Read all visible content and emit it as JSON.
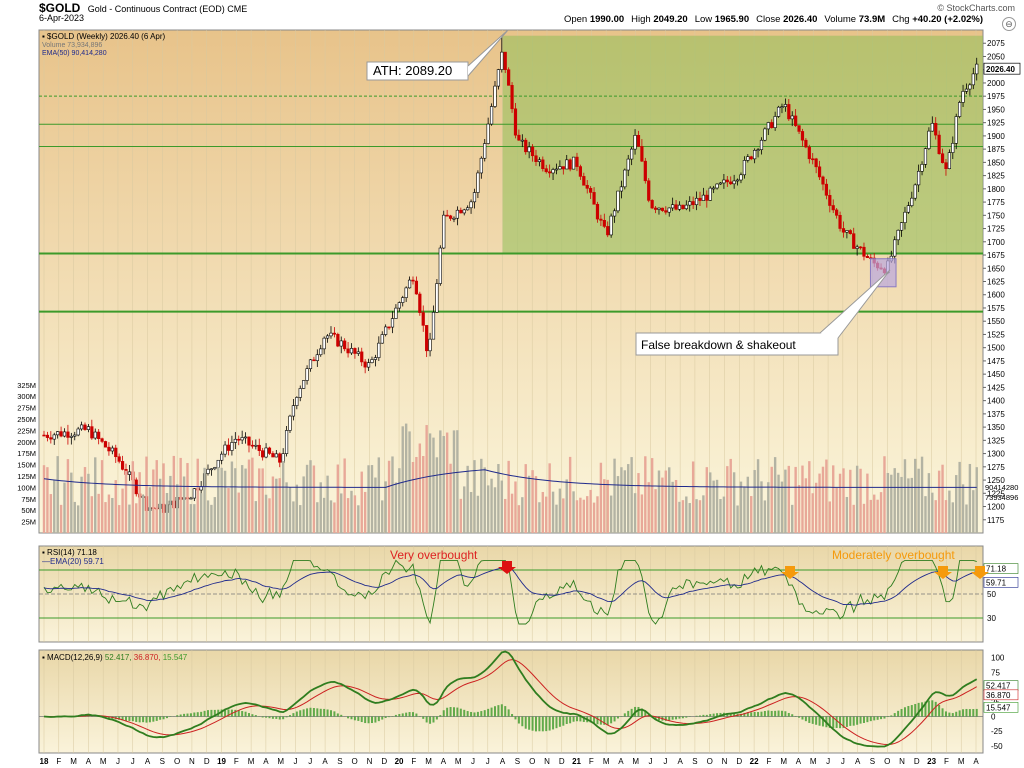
{
  "header": {
    "symbol": "$GOLD",
    "description": "Gold - Continuous Contract (EOD)",
    "exchange": "CME",
    "date": "6-Apr-2023",
    "copyright": "© StockCharts.com",
    "ohlc": [
      {
        "label": "Open",
        "value": "1990.00"
      },
      {
        "label": "High",
        "value": "2049.20"
      },
      {
        "label": "Low",
        "value": "1965.90"
      },
      {
        "label": "Close",
        "value": "2026.40"
      },
      {
        "label": "Volume",
        "value": "73.9M"
      },
      {
        "label": "Chg",
        "value": "+40.20 (+2.02%)"
      }
    ]
  },
  "legend": {
    "price": "$GOLD (Weekly) 2026.40 (6 Apr)",
    "volume": "Volume 73,934,896",
    "ema": "EMA(50) 90,414,280"
  },
  "annotations": {
    "ath": "ATH: 2089.20",
    "false_breakdown": "False breakdown & shakeout",
    "very_overbought": "Very overbought",
    "moderately_overbought": "Moderately overbought"
  },
  "colors": {
    "up": "#000000",
    "down": "#cc0000",
    "volume_up": "#b3b3a3",
    "volume_down": "#e8a898",
    "ema_volume": "#1f2a8c",
    "support_line": "#3c9a2a",
    "range_fill": "#8fc05a",
    "rsi_line": "#2f7d1f",
    "rsi_ema": "#1f2a8c",
    "macd_line": "#2f7d1f",
    "macd_signal": "#cc2222",
    "macd_hist": "#3c9a2a",
    "arrow_red": "#dd1111",
    "arrow_orange": "#f59a0c"
  },
  "chart_data": [
    {
      "type": "candlestick",
      "title": "$GOLD (Weekly) 2026.40 (6 Apr)",
      "y_range": [
        1150,
        2100
      ],
      "y_ticks": [
        1175,
        1200,
        1225,
        1250,
        1275,
        1300,
        1325,
        1350,
        1375,
        1400,
        1425,
        1450,
        1475,
        1500,
        1525,
        1550,
        1575,
        1600,
        1625,
        1650,
        1675,
        1700,
        1725,
        1750,
        1775,
        1800,
        1825,
        1850,
        1875,
        1900,
        1925,
        1950,
        1975,
        2000,
        2025,
        2050,
        2075
      ],
      "last_value": "2026.40",
      "horizontal_levels": [
        {
          "value": 1975,
          "style": "dashed"
        },
        {
          "value": 1922
        },
        {
          "value": 1880
        },
        {
          "value": 1678
        },
        {
          "value": 1568
        }
      ],
      "consolidation_range": {
        "from": "2020-08",
        "to": "2023-04",
        "low": 1678,
        "high": 2089.2
      },
      "x_labels": [
        "18",
        "F",
        "M",
        "A",
        "M",
        "J",
        "J",
        "A",
        "S",
        "O",
        "N",
        "D",
        "19",
        "F",
        "M",
        "A",
        "M",
        "J",
        "J",
        "A",
        "S",
        "O",
        "N",
        "D",
        "20",
        "F",
        "M",
        "A",
        "M",
        "J",
        "J",
        "A",
        "S",
        "O",
        "N",
        "D",
        "21",
        "F",
        "M",
        "A",
        "M",
        "J",
        "J",
        "A",
        "S",
        "O",
        "N",
        "D",
        "22",
        "F",
        "M",
        "A",
        "M",
        "J",
        "J",
        "A",
        "S",
        "O",
        "N",
        "D",
        "23",
        "F",
        "M",
        "A"
      ],
      "anchors": [
        {
          "date": "2018-01",
          "close": 1335
        },
        {
          "date": "2018-04",
          "close": 1345
        },
        {
          "date": "2018-06",
          "close": 1290
        },
        {
          "date": "2018-08",
          "close": 1200
        },
        {
          "date": "2018-09",
          "close": 1195
        },
        {
          "date": "2018-11",
          "close": 1225
        },
        {
          "date": "2019-01",
          "close": 1300
        },
        {
          "date": "2019-02",
          "close": 1330
        },
        {
          "date": "2019-05",
          "close": 1285
        },
        {
          "date": "2019-06",
          "close": 1410
        },
        {
          "date": "2019-08",
          "close": 1525
        },
        {
          "date": "2019-09",
          "close": 1510
        },
        {
          "date": "2019-11",
          "close": 1465
        },
        {
          "date": "2020-01",
          "close": 1585
        },
        {
          "date": "2020-02",
          "close": 1640
        },
        {
          "date": "2020-03",
          "close": 1480
        },
        {
          "date": "2020-04",
          "close": 1740
        },
        {
          "date": "2020-06",
          "close": 1780
        },
        {
          "date": "2020-08",
          "close": 2060
        },
        {
          "date": "2020-09",
          "close": 1890
        },
        {
          "date": "2020-11",
          "close": 1840
        },
        {
          "date": "2021-01",
          "close": 1850
        },
        {
          "date": "2021-03",
          "close": 1710
        },
        {
          "date": "2021-05",
          "close": 1900
        },
        {
          "date": "2021-06",
          "close": 1770
        },
        {
          "date": "2021-08",
          "close": 1760
        },
        {
          "date": "2021-10",
          "close": 1790
        },
        {
          "date": "2021-12",
          "close": 1830
        },
        {
          "date": "2022-03",
          "close": 1960
        },
        {
          "date": "2022-05",
          "close": 1850
        },
        {
          "date": "2022-07",
          "close": 1720
        },
        {
          "date": "2022-09",
          "close": 1660
        },
        {
          "date": "2022-10",
          "close": 1650
        },
        {
          "date": "2022-12",
          "close": 1820
        },
        {
          "date": "2023-01",
          "close": 1925
        },
        {
          "date": "2023-02",
          "close": 1830
        },
        {
          "date": "2023-03",
          "close": 1980
        },
        {
          "date": "2023-04",
          "close": 2026
        }
      ]
    },
    {
      "type": "bar",
      "title": "Volume 73,934,896",
      "y_ticks_labels": [
        "25M",
        "50M",
        "75M",
        "100M",
        "125M",
        "150M",
        "175M",
        "200M",
        "225M",
        "250M",
        "275M",
        "300M",
        "325M"
      ],
      "right_labels": [
        "90414280",
        "73934896"
      ],
      "series": [
        {
          "name": "EMA(50)",
          "last": 90414280
        }
      ]
    },
    {
      "type": "line",
      "title": "RSI(14) 71.18",
      "y_ticks": [
        30,
        50,
        70
      ],
      "series": [
        {
          "name": "RSI(14)",
          "last": 71.18
        },
        {
          "name": "EMA(20)",
          "last": 59.71
        }
      ]
    },
    {
      "type": "line",
      "title": "MACD(12,26,9) 52.417, 36.870, 15.547",
      "y_ticks": [
        -50,
        -25,
        0,
        25,
        50,
        75,
        100
      ],
      "series": [
        {
          "name": "MACD",
          "last": 52.417
        },
        {
          "name": "Signal",
          "last": 36.87
        },
        {
          "name": "Histogram",
          "last": 15.547
        }
      ]
    }
  ],
  "rsi_legend": {
    "rsi": "RSI(14) 71.18",
    "ema": "EMA(20) 59.71"
  },
  "macd_legend": {
    "name": "MACD(12,26,9)",
    "macd": "52.417",
    "signal": "36.870",
    "hist": "15.547"
  },
  "right_labels": {
    "rsi": "71.18",
    "rsi_ema": "59.71",
    "macd": "52.417",
    "signal": "36.870",
    "hist": "15.547"
  }
}
